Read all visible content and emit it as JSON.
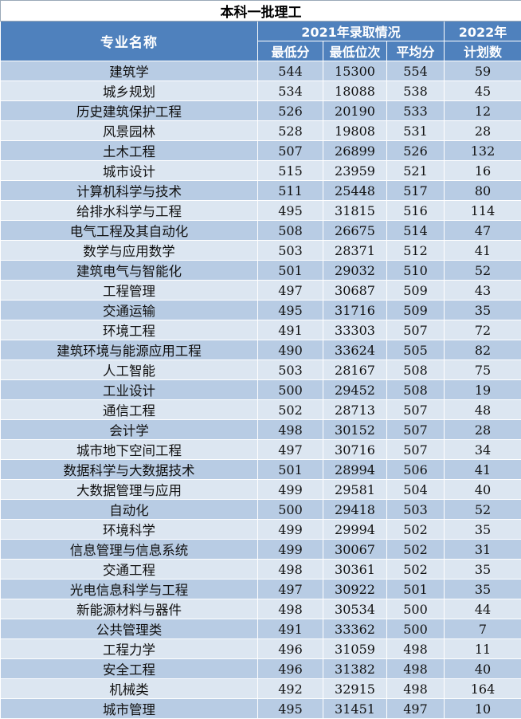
{
  "title": "本科一批理工",
  "headers": {
    "major": "专业名称",
    "group2021": "2021年录取情况",
    "min_score": "最低分",
    "min_rank": "最低位次",
    "avg_score": "平均分",
    "plan_line1": "2022年",
    "plan_line2": "计划数"
  },
  "rows": [
    {
      "major": "建筑学",
      "min_score": "544",
      "min_rank": "15300",
      "avg_score": "554",
      "plan": "59"
    },
    {
      "major": "城乡规划",
      "min_score": "534",
      "min_rank": "18088",
      "avg_score": "538",
      "plan": "45"
    },
    {
      "major": "历史建筑保护工程",
      "min_score": "526",
      "min_rank": "20190",
      "avg_score": "533",
      "plan": "12"
    },
    {
      "major": "风景园林",
      "min_score": "528",
      "min_rank": "19808",
      "avg_score": "531",
      "plan": "28"
    },
    {
      "major": "土木工程",
      "min_score": "507",
      "min_rank": "26899",
      "avg_score": "526",
      "plan": "132"
    },
    {
      "major": "城市设计",
      "min_score": "515",
      "min_rank": "23959",
      "avg_score": "521",
      "plan": "16"
    },
    {
      "major": "计算机科学与技术",
      "min_score": "511",
      "min_rank": "25448",
      "avg_score": "517",
      "plan": "80"
    },
    {
      "major": "给排水科学与工程",
      "min_score": "495",
      "min_rank": "31815",
      "avg_score": "516",
      "plan": "114"
    },
    {
      "major": "电气工程及其自动化",
      "min_score": "508",
      "min_rank": "26675",
      "avg_score": "514",
      "plan": "47"
    },
    {
      "major": "数学与应用数学",
      "min_score": "503",
      "min_rank": "28371",
      "avg_score": "512",
      "plan": "41"
    },
    {
      "major": "建筑电气与智能化",
      "min_score": "501",
      "min_rank": "29032",
      "avg_score": "510",
      "plan": "52"
    },
    {
      "major": "工程管理",
      "min_score": "497",
      "min_rank": "30687",
      "avg_score": "509",
      "plan": "43"
    },
    {
      "major": "交通运输",
      "min_score": "495",
      "min_rank": "31716",
      "avg_score": "509",
      "plan": "35"
    },
    {
      "major": "环境工程",
      "min_score": "491",
      "min_rank": "33303",
      "avg_score": "507",
      "plan": "72"
    },
    {
      "major": "建筑环境与能源应用工程",
      "min_score": "490",
      "min_rank": "33624",
      "avg_score": "505",
      "plan": "82"
    },
    {
      "major": "人工智能",
      "min_score": "503",
      "min_rank": "28167",
      "avg_score": "508",
      "plan": "75"
    },
    {
      "major": "工业设计",
      "min_score": "500",
      "min_rank": "29452",
      "avg_score": "508",
      "plan": "19"
    },
    {
      "major": "通信工程",
      "min_score": "502",
      "min_rank": "28713",
      "avg_score": "507",
      "plan": "48"
    },
    {
      "major": "会计学",
      "min_score": "498",
      "min_rank": "30152",
      "avg_score": "507",
      "plan": "28"
    },
    {
      "major": "城市地下空间工程",
      "min_score": "497",
      "min_rank": "30716",
      "avg_score": "507",
      "plan": "34"
    },
    {
      "major": "数据科学与大数据技术",
      "min_score": "501",
      "min_rank": "28994",
      "avg_score": "506",
      "plan": "41"
    },
    {
      "major": "大数据管理与应用",
      "min_score": "499",
      "min_rank": "29581",
      "avg_score": "504",
      "plan": "40"
    },
    {
      "major": "自动化",
      "min_score": "500",
      "min_rank": "29418",
      "avg_score": "503",
      "plan": "52"
    },
    {
      "major": "环境科学",
      "min_score": "499",
      "min_rank": "29994",
      "avg_score": "502",
      "plan": "35"
    },
    {
      "major": "信息管理与信息系统",
      "min_score": "499",
      "min_rank": "30067",
      "avg_score": "502",
      "plan": "31"
    },
    {
      "major": "交通工程",
      "min_score": "498",
      "min_rank": "30361",
      "avg_score": "502",
      "plan": "35"
    },
    {
      "major": "光电信息科学与工程",
      "min_score": "497",
      "min_rank": "30922",
      "avg_score": "501",
      "plan": "35"
    },
    {
      "major": "新能源材料与器件",
      "min_score": "498",
      "min_rank": "30534",
      "avg_score": "500",
      "plan": "44"
    },
    {
      "major": "公共管理类",
      "min_score": "491",
      "min_rank": "33362",
      "avg_score": "500",
      "plan": "7"
    },
    {
      "major": "工程力学",
      "min_score": "496",
      "min_rank": "31059",
      "avg_score": "498",
      "plan": "11"
    },
    {
      "major": "安全工程",
      "min_score": "496",
      "min_rank": "31382",
      "avg_score": "498",
      "plan": "40"
    },
    {
      "major": "机械类",
      "min_score": "492",
      "min_rank": "32915",
      "avg_score": "498",
      "plan": "164"
    },
    {
      "major": "城市管理",
      "min_score": "495",
      "min_rank": "31451",
      "avg_score": "497",
      "plan": "10"
    }
  ],
  "colors": {
    "header_bg": "#4f81bd",
    "row_odd": "#b8cce4",
    "row_even": "#dce6f1"
  }
}
